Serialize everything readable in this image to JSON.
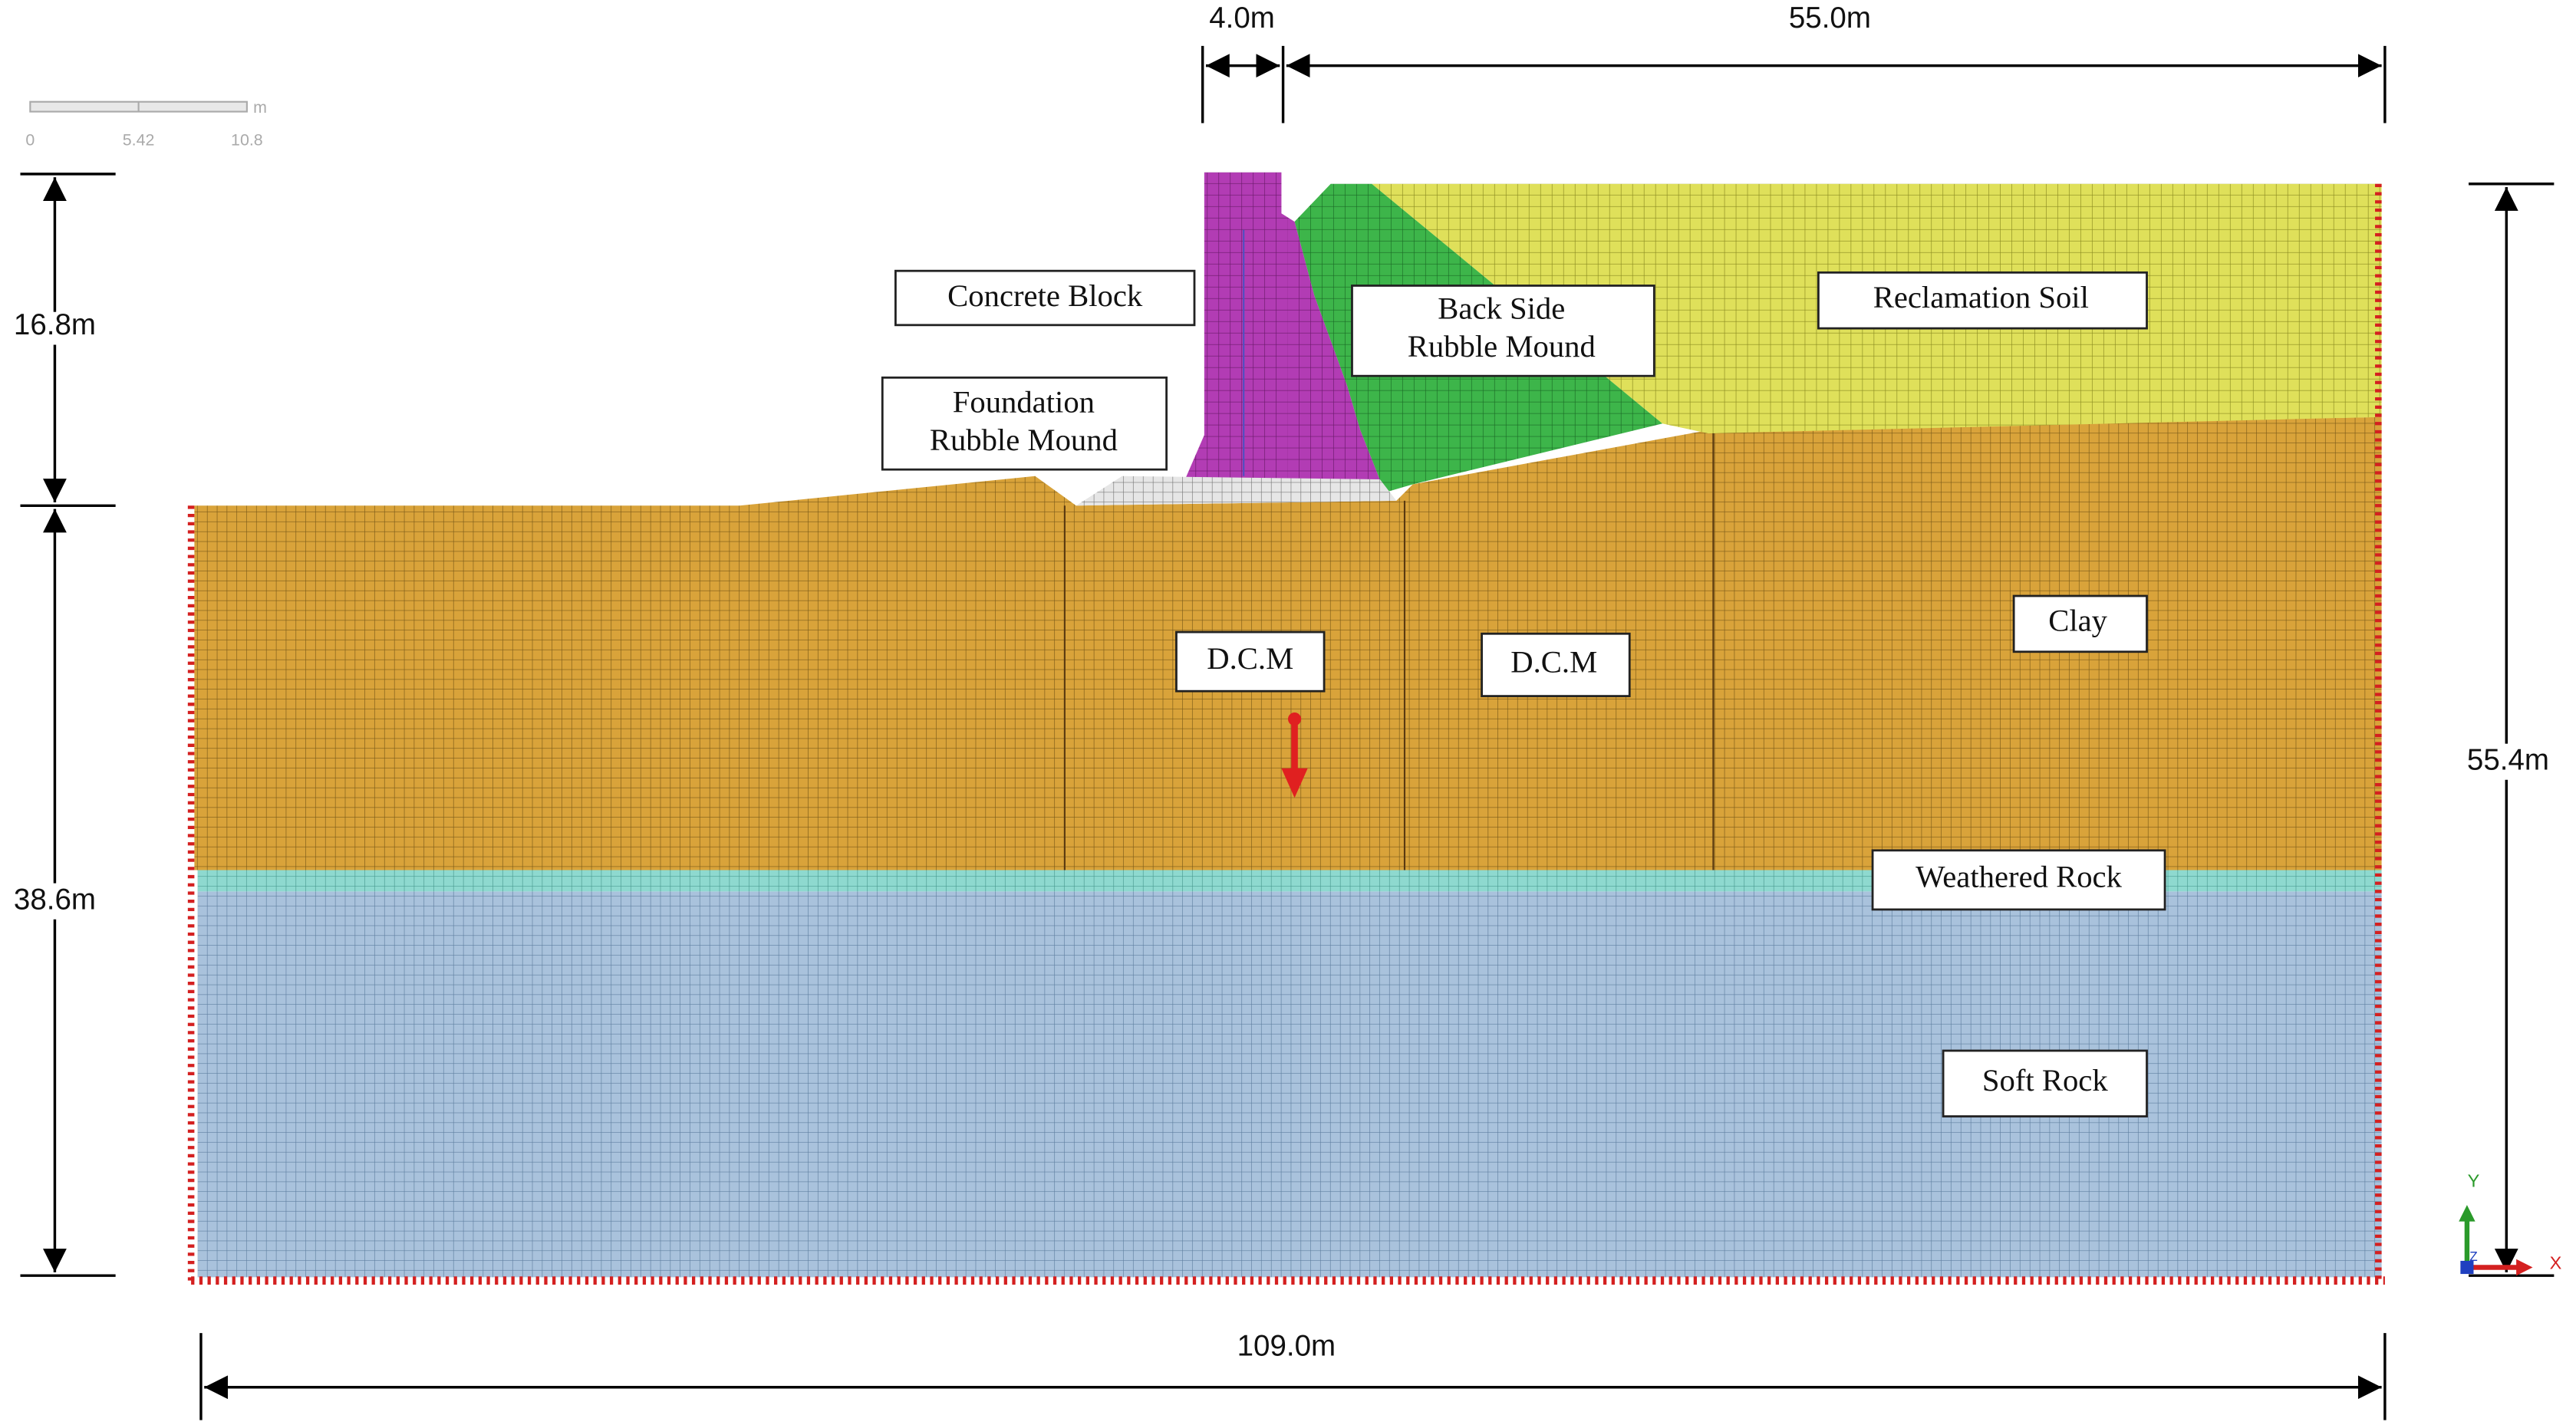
{
  "scale_bar": {
    "ticks": [
      "0",
      "5.42",
      "10.8"
    ],
    "unit": "m"
  },
  "dimensions": {
    "top_left": "4.0m",
    "top_right": "55.0m",
    "left_upper": "16.8m",
    "left_lower": "38.6m",
    "right": "55.4m",
    "bottom": "109.0m"
  },
  "labels": {
    "concrete_block": [
      "Concrete Block"
    ],
    "back_side_rubble_mound": [
      "Back Side",
      "Rubble Mound"
    ],
    "foundation_rubble_mound": [
      "Foundation",
      "Rubble Mound"
    ],
    "reclamation_soil": [
      "Reclamation Soil"
    ],
    "dcm_left": [
      "D.C.M"
    ],
    "dcm_right": [
      "D.C.M"
    ],
    "clay": [
      "Clay"
    ],
    "weathered_rock": [
      "Weathered Rock"
    ],
    "soft_rock": [
      "Soft Rock"
    ]
  },
  "axes": {
    "x": "X",
    "y": "Y",
    "z": "Z"
  }
}
